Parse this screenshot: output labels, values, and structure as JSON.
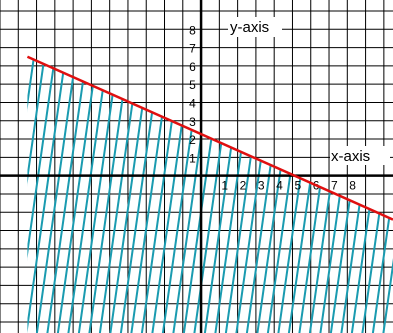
{
  "chart_data": {
    "type": "inequality-graph",
    "xlabel": "x-axis",
    "ylabel": "y-axis",
    "x_ticks": [
      "1",
      "2",
      "3",
      "4",
      "5",
      "6",
      "7",
      "8"
    ],
    "y_ticks": [
      "1",
      "2",
      "3",
      "4",
      "5",
      "6",
      "7",
      "8"
    ],
    "xlim": [
      -11,
      10.5
    ],
    "ylim": [
      -8.6,
      9.6
    ],
    "grid": true,
    "boundary_line": {
      "color": "#e01010",
      "points": [
        [
          -9.5,
          6.5
        ],
        [
          10.5,
          -2.4
        ]
      ]
    },
    "shaded_region": {
      "side": "below",
      "pattern": "diagonal-hatch",
      "color": "#1a9bb0"
    }
  }
}
